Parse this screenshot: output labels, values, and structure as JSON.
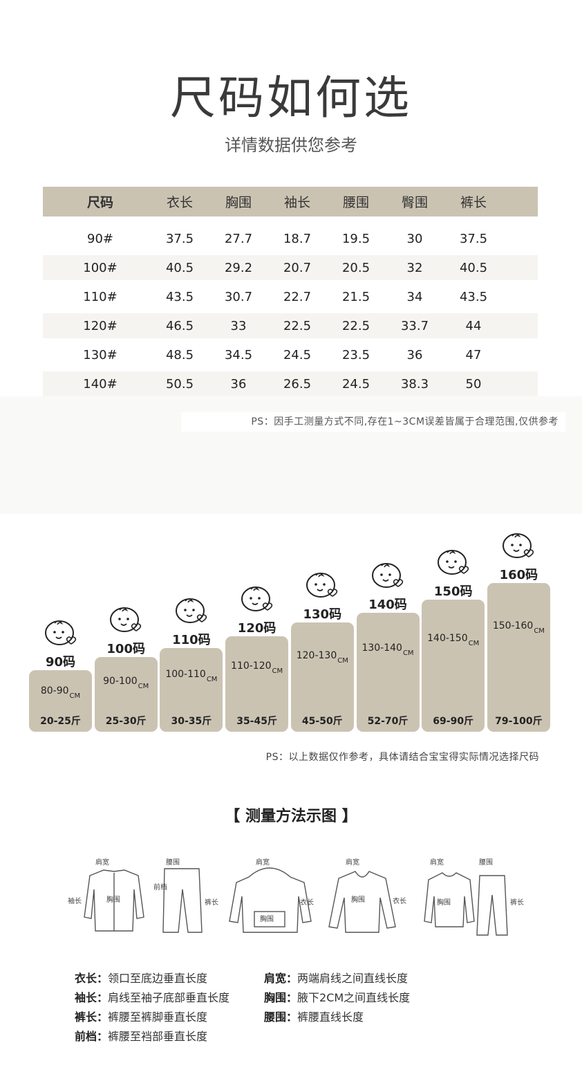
{
  "header": {
    "title": "尺码如何选",
    "subtitle": "详情数据供您参考"
  },
  "size_table": {
    "columns": [
      "尺码",
      "衣长",
      "胸围",
      "袖长",
      "腰围",
      "臀围",
      "裤长"
    ],
    "rows": [
      [
        "90#",
        "37.5",
        "27.7",
        "18.7",
        "19.5",
        "30",
        "37.5"
      ],
      [
        "100#",
        "40.5",
        "29.2",
        "20.7",
        "20.5",
        "32",
        "40.5"
      ],
      [
        "110#",
        "43.5",
        "30.7",
        "22.7",
        "21.5",
        "34",
        "43.5"
      ],
      [
        "120#",
        "46.5",
        "33",
        "22.5",
        "22.5",
        "33.7",
        "44"
      ],
      [
        "130#",
        "48.5",
        "34.5",
        "24.5",
        "23.5",
        "36",
        "47"
      ],
      [
        "140#",
        "50.5",
        "36",
        "26.5",
        "24.5",
        "38.3",
        "50"
      ]
    ]
  },
  "note1": "PS：因手工测量方式不同,存在1~3CM误差皆属于合理范围,仅供参考",
  "size_chart": {
    "bars": [
      {
        "size": "90码",
        "height": "80-90",
        "unit": "CM",
        "weight": "20-25斤"
      },
      {
        "size": "100码",
        "height": "90-100",
        "unit": "CM",
        "weight": "25-30斤"
      },
      {
        "size": "110码",
        "height": "100-110",
        "unit": "CM",
        "weight": "30-35斤"
      },
      {
        "size": "120码",
        "height": "110-120",
        "unit": "CM",
        "weight": "35-45斤"
      },
      {
        "size": "130码",
        "height": "120-130",
        "unit": "CM",
        "weight": "45-50斤"
      },
      {
        "size": "140码",
        "height": "130-140",
        "unit": "CM",
        "weight": "52-70斤"
      },
      {
        "size": "150码",
        "height": "140-150",
        "unit": "CM",
        "weight": "69-90斤"
      },
      {
        "size": "160码",
        "height": "150-160",
        "unit": "CM",
        "weight": "79-100斤"
      }
    ]
  },
  "note2": "PS：以上数据仅作参考，具体请结合宝宝得实际情况选择尺码",
  "method": {
    "title": "【 测量方法示图 】",
    "diagram_labels": {
      "shoulder": "肩宽",
      "waist": "腰围",
      "chest": "胸围",
      "sleeve": "袖长",
      "length": "衣长",
      "pants": "裤长",
      "rise": "前档"
    },
    "definitions": [
      {
        "term": "衣长：",
        "text": "领口至底边垂直长度"
      },
      {
        "term": "肩宽：",
        "text": "两端肩线之间直线长度"
      },
      {
        "term": "袖长：",
        "text": "肩线至袖子底部垂直长度"
      },
      {
        "term": "胸围：",
        "text": "腋下2CM之间直线长度"
      },
      {
        "term": "裤长：",
        "text": "裤腰至裤脚垂直长度"
      },
      {
        "term": "腰围：",
        "text": "裤腰直线长度"
      },
      {
        "term": "前档：",
        "text": "裤腰至裆部垂直长度"
      }
    ]
  },
  "colors": {
    "accent": "#cbc3b2",
    "row_alt": "#f5f4f0",
    "text": "#222222"
  }
}
